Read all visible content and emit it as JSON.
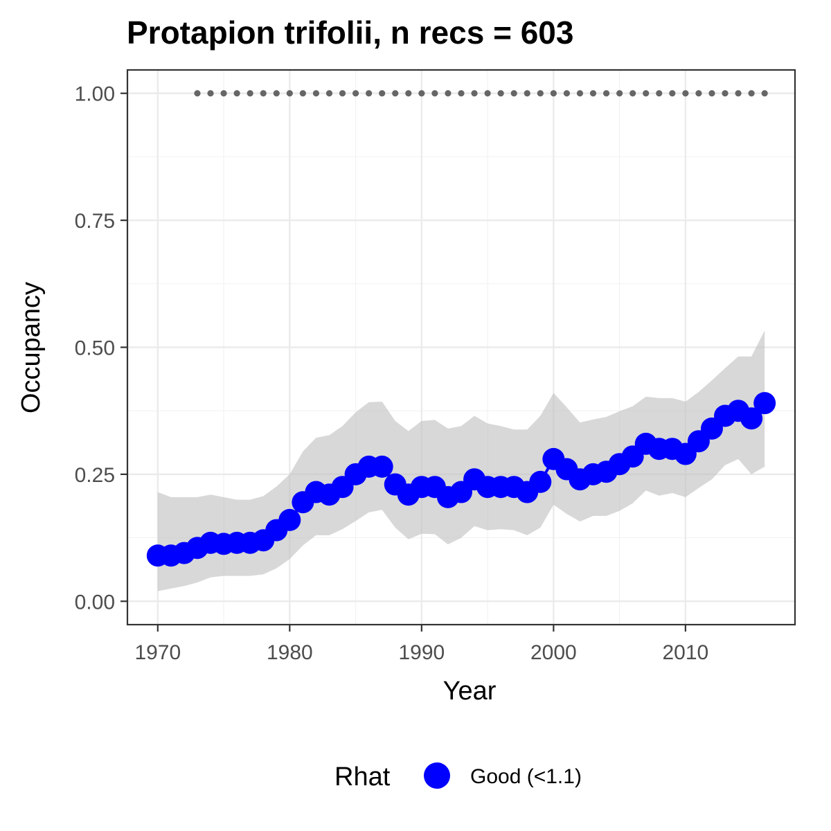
{
  "chart_data": {
    "type": "line",
    "title": "Protapion trifolii, n recs = 603",
    "xlabel": "Year",
    "ylabel": "Occupancy",
    "xlim": [
      1967.7,
      2018.3
    ],
    "ylim": [
      -0.046,
      1.046
    ],
    "x_ticks": [
      1970,
      1980,
      1990,
      2000,
      2010
    ],
    "x_tick_labels": [
      "1970",
      "1980",
      "1990",
      "2000",
      "2010"
    ],
    "y_ticks": [
      0,
      0.25,
      0.5,
      0.75,
      1.0
    ],
    "y_tick_labels": [
      "0.00",
      "0.25",
      "0.50",
      "0.75",
      "1.00"
    ],
    "grid": true,
    "x": [
      1970,
      1971,
      1972,
      1973,
      1974,
      1975,
      1976,
      1977,
      1978,
      1979,
      1980,
      1981,
      1982,
      1983,
      1984,
      1985,
      1986,
      1987,
      1988,
      1989,
      1990,
      1991,
      1992,
      1993,
      1994,
      1995,
      1996,
      1997,
      1998,
      1999,
      2000,
      2001,
      2002,
      2003,
      2004,
      2005,
      2006,
      2007,
      2008,
      2009,
      2010,
      2011,
      2012,
      2013,
      2014,
      2015,
      2016
    ],
    "series": [
      {
        "name": "Good (<1.1)",
        "color": "#0000ff",
        "values": [
          0.09,
          0.09,
          0.095,
          0.105,
          0.115,
          0.113,
          0.115,
          0.115,
          0.12,
          0.14,
          0.16,
          0.195,
          0.215,
          0.21,
          0.225,
          0.25,
          0.265,
          0.265,
          0.23,
          0.21,
          0.225,
          0.225,
          0.205,
          0.215,
          0.24,
          0.225,
          0.225,
          0.225,
          0.215,
          0.235,
          0.28,
          0.26,
          0.24,
          0.25,
          0.255,
          0.27,
          0.285,
          0.31,
          0.3,
          0.3,
          0.29,
          0.315,
          0.34,
          0.365,
          0.375,
          0.36,
          0.39
        ],
        "lower": [
          0.02,
          0.025,
          0.03,
          0.037,
          0.047,
          0.05,
          0.05,
          0.05,
          0.053,
          0.065,
          0.083,
          0.11,
          0.13,
          0.13,
          0.142,
          0.158,
          0.175,
          0.18,
          0.145,
          0.122,
          0.133,
          0.132,
          0.112,
          0.125,
          0.148,
          0.14,
          0.142,
          0.14,
          0.13,
          0.145,
          0.19,
          0.172,
          0.157,
          0.168,
          0.168,
          0.178,
          0.193,
          0.218,
          0.208,
          0.213,
          0.205,
          0.223,
          0.24,
          0.268,
          0.28,
          0.25,
          0.265
        ],
        "upper": [
          0.215,
          0.205,
          0.205,
          0.205,
          0.21,
          0.205,
          0.2,
          0.2,
          0.207,
          0.226,
          0.25,
          0.295,
          0.322,
          0.327,
          0.345,
          0.372,
          0.392,
          0.393,
          0.355,
          0.335,
          0.355,
          0.357,
          0.34,
          0.345,
          0.365,
          0.35,
          0.345,
          0.338,
          0.338,
          0.365,
          0.41,
          0.382,
          0.352,
          0.358,
          0.363,
          0.374,
          0.384,
          0.403,
          0.4,
          0.4,
          0.393,
          0.412,
          0.435,
          0.459,
          0.482,
          0.482,
          0.533
        ]
      }
    ],
    "rhat_marker_y": 1.0,
    "rhat_marker_x": [
      1973,
      1974,
      1975,
      1976,
      1977,
      1978,
      1979,
      1980,
      1981,
      1982,
      1983,
      1984,
      1985,
      1986,
      1987,
      1988,
      1989,
      1990,
      1991,
      1992,
      1993,
      1994,
      1995,
      1996,
      1997,
      1998,
      1999,
      2000,
      2001,
      2002,
      2003,
      2004,
      2005,
      2006,
      2007,
      2008,
      2009,
      2010,
      2011,
      2012,
      2013,
      2014,
      2015,
      2016
    ],
    "ribbon_color": "#bebebe",
    "rhat_marker_color": "#666666",
    "legend": {
      "title": "Rhat",
      "position": "bottom",
      "entries": [
        {
          "label": "Good (<1.1)",
          "color": "#0000ff"
        }
      ]
    }
  }
}
